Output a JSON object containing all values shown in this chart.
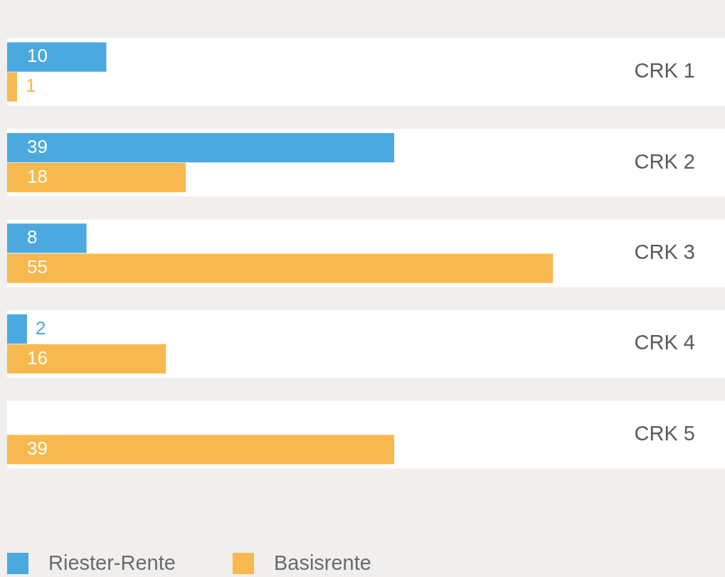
{
  "chart_data": {
    "type": "bar",
    "orientation": "horizontal",
    "categories": [
      "CRK 1",
      "CRK 2",
      "CRK 3",
      "CRK 4",
      "CRK 5"
    ],
    "series": [
      {
        "name": "Riester-Rente",
        "color": "#4ba9e0",
        "values": [
          10,
          39,
          8,
          2,
          null
        ]
      },
      {
        "name": "Basisrente",
        "color": "#f7b94f",
        "values": [
          1,
          18,
          55,
          16,
          39
        ]
      }
    ],
    "data_labels": true,
    "legend": "bottom left",
    "tick_labels": "y"
  }
}
